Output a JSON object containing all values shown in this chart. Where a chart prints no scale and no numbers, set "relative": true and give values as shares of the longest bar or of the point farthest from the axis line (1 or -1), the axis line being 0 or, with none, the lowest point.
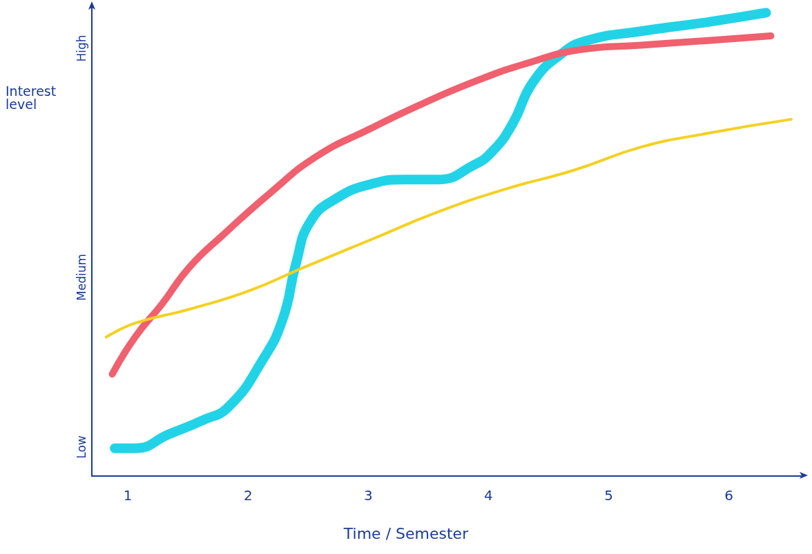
{
  "chart_data": {
    "type": "line",
    "xlabel": "Time / Semester",
    "ylabel": "Interest level",
    "relative": true,
    "annotations": [
      "Low",
      "Medium",
      "High"
    ],
    "xlim": [
      0.7,
      6.6
    ],
    "xticks": [
      1,
      2,
      3,
      4,
      5,
      6
    ],
    "marker": "none",
    "line_style": "solid",
    "series": [
      {
        "color": "#22d3e8",
        "x": [
          0.89,
          1.06,
          1.34,
          1.62,
          1.84,
          2.12,
          2.29,
          2.4,
          2.52,
          2.74,
          3.02,
          3.3,
          3.58,
          3.87,
          4.03,
          4.2,
          4.37,
          4.6,
          4.82,
          5.27,
          5.83,
          6.31
        ],
        "values": [
          0.06,
          0.06,
          0.09,
          0.12,
          0.15,
          0.25,
          0.34,
          0.46,
          0.55,
          0.6,
          0.63,
          0.64,
          0.64,
          0.67,
          0.7,
          0.76,
          0.85,
          0.91,
          0.94,
          0.96,
          0.98,
          1
        ]
      },
      {
        "color": "#f0606e",
        "x": [
          0.87,
          1.06,
          1.28,
          1.51,
          1.79,
          2.18,
          2.57,
          3.02,
          3.42,
          3.87,
          4.31,
          4.76,
          5.27,
          5.83,
          6.35
        ],
        "values": [
          0.22,
          0.3,
          0.37,
          0.45,
          0.52,
          0.61,
          0.69,
          0.75,
          0.8,
          0.85,
          0.89,
          0.92,
          0.93,
          0.94,
          0.95
        ]
      },
      {
        "color": "#f5d020",
        "x": [
          0.82,
          1.06,
          1.51,
          2.01,
          2.46,
          3.02,
          3.58,
          4.15,
          4.71,
          5.27,
          5.83,
          6.52
        ],
        "values": [
          0.3,
          0.33,
          0.36,
          0.4,
          0.45,
          0.51,
          0.57,
          0.62,
          0.66,
          0.71,
          0.74,
          0.77
        ]
      }
    ]
  }
}
